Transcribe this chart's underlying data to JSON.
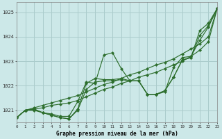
{
  "title": "Graphe pression niveau de la mer (hPa)",
  "background_color": "#cce8e8",
  "grid_color": "#aacccc",
  "line_color": "#2d6e2d",
  "x_min": 0,
  "x_max": 23,
  "y_min": 1020.5,
  "y_max": 1025.4,
  "y_ticks": [
    1021,
    1022,
    1023,
    1024,
    1025
  ],
  "x_ticks": [
    0,
    1,
    2,
    3,
    4,
    5,
    6,
    7,
    8,
    9,
    10,
    11,
    12,
    13,
    14,
    15,
    16,
    17,
    18,
    19,
    20,
    21,
    22,
    23
  ],
  "series_jagged": [
    1020.7,
    1021.0,
    1021.0,
    1020.9,
    1020.85,
    1020.75,
    1020.75,
    1021.35,
    1022.15,
    1022.1,
    1023.25,
    1023.35,
    1022.7,
    1022.2,
    1022.2,
    1021.65,
    1021.65,
    1021.75,
    1022.75,
    1023.15,
    1023.2,
    1023.85,
    1024.4,
    1025.15
  ],
  "series_mid1": [
    1020.7,
    1021.0,
    1021.05,
    1020.9,
    1020.8,
    1020.7,
    1020.65,
    1021.0,
    1021.85,
    1022.15,
    1022.2,
    1022.2,
    1022.25,
    1022.2,
    1022.2,
    1021.65,
    1021.65,
    1021.8,
    1022.35,
    1023.05,
    1023.15,
    1024.25,
    1024.55,
    1025.15
  ],
  "series_mid2": [
    1020.7,
    1021.0,
    1021.05,
    1020.9,
    1020.8,
    1020.7,
    1020.65,
    1021.05,
    1022.1,
    1022.3,
    1022.25,
    1022.25,
    1022.3,
    1022.2,
    1022.2,
    1021.65,
    1021.65,
    1021.8,
    1022.35,
    1023.05,
    1023.15,
    1024.05,
    1024.45,
    1025.15
  ],
  "series_line1": [
    1020.7,
    1021.0,
    1021.1,
    1021.2,
    1021.3,
    1021.4,
    1021.5,
    1021.6,
    1021.75,
    1021.9,
    1022.05,
    1022.15,
    1022.3,
    1022.45,
    1022.55,
    1022.7,
    1022.85,
    1022.95,
    1023.1,
    1023.3,
    1023.5,
    1023.7,
    1024.0,
    1025.15
  ],
  "series_line2": [
    1020.7,
    1021.0,
    1021.05,
    1021.1,
    1021.2,
    1021.25,
    1021.3,
    1021.4,
    1021.55,
    1021.7,
    1021.85,
    1021.95,
    1022.1,
    1022.2,
    1022.35,
    1022.45,
    1022.55,
    1022.7,
    1022.85,
    1023.0,
    1023.2,
    1023.45,
    1023.8,
    1025.15
  ]
}
